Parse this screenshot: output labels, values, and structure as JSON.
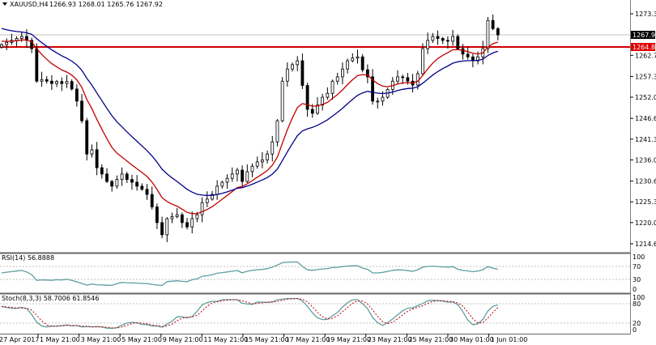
{
  "header": {
    "symbol_label": "XAUUSD,H4",
    "ohlc": "1266.93 1268.01 1265.76 1267.92"
  },
  "colors": {
    "bull_fill": "#ffffff",
    "bear_fill": "#000000",
    "fast_ma": "#c00000",
    "slow_ma": "#00008b",
    "horizontal_line": "#d00000",
    "indicator_line": "#5f9ea0",
    "signal_line": "#c00000"
  },
  "chart_data": [
    {
      "type": "candlestick",
      "title": "XAUUSD,H4",
      "ylim": [
        1211.0,
        1276.0
      ],
      "y_ticks": [
        "1273.30",
        "1262.70",
        "1257.30",
        "1252.00",
        "1246.60",
        "1241.30",
        "1236.00",
        "1230.60",
        "1225.30",
        "1220.00",
        "1214.60"
      ],
      "x_ticks": [
        "27 Apr 2017",
        "1 May 21:00",
        "3 May 21:00",
        "5 May 21:00",
        "9 May 21:00",
        "11 May 21:00",
        "15 May 21:00",
        "17 May 21:00",
        "19 May 21:00",
        "23 May 21:00",
        "25 May 21:00",
        "30 May 01:00",
        "1 Jun 01:00"
      ],
      "current_price": "1267.92",
      "horizontal_line_price": "1264.82",
      "closes": [
        1265.4,
        1266,
        1266.5,
        1267,
        1267.5,
        1266.5,
        1264.4,
        1256.1,
        1256.5,
        1256.1,
        1255.5,
        1256,
        1255.5,
        1256,
        1254.1,
        1251,
        1246,
        1237.5,
        1238.6,
        1234,
        1232.4,
        1230.5,
        1229.3,
        1231,
        1232.4,
        1231,
        1230.3,
        1229.3,
        1228.5,
        1227.2,
        1224,
        1220,
        1216.9,
        1221,
        1221.5,
        1222,
        1220,
        1218.9,
        1221,
        1222,
        1225.1,
        1226,
        1227.2,
        1229.3,
        1230.3,
        1231.3,
        1232.4,
        1233.4,
        1230.5,
        1233,
        1234.4,
        1235.5,
        1236,
        1237.5,
        1240.6,
        1246,
        1256.1,
        1259.2,
        1260.3,
        1261.3,
        1255,
        1248.9,
        1247.9,
        1250,
        1252,
        1253,
        1256.1,
        1257.2,
        1259.2,
        1261.3,
        1262,
        1262.3,
        1259,
        1257.2,
        1251,
        1251,
        1252,
        1254,
        1256.1,
        1257.2,
        1257,
        1256.1,
        1255.1,
        1258,
        1264.4,
        1266.5,
        1267.5,
        1267,
        1266.5,
        1266.3,
        1267.5,
        1264.4,
        1263,
        1262.3,
        1261.3,
        1262.3,
        1264.4,
        1271.6,
        1269.5,
        1267.92
      ],
      "series": [
        {
          "type": "moving-average"
        },
        {
          "type": "moving-average"
        }
      ]
    },
    {
      "type": "line",
      "label": "RSI(14) 56.8888",
      "ylim": [
        0,
        100
      ],
      "y_ticks": [
        "100",
        "70",
        "30",
        "0"
      ],
      "levels": [
        70,
        30
      ]
    },
    {
      "type": "line",
      "label": "Stoch(8,3,3) 58.7006 61.8546",
      "ylim": [
        0,
        100
      ],
      "y_ticks": [
        "100",
        "80",
        "20",
        "0"
      ],
      "levels": [
        80,
        20
      ]
    }
  ]
}
